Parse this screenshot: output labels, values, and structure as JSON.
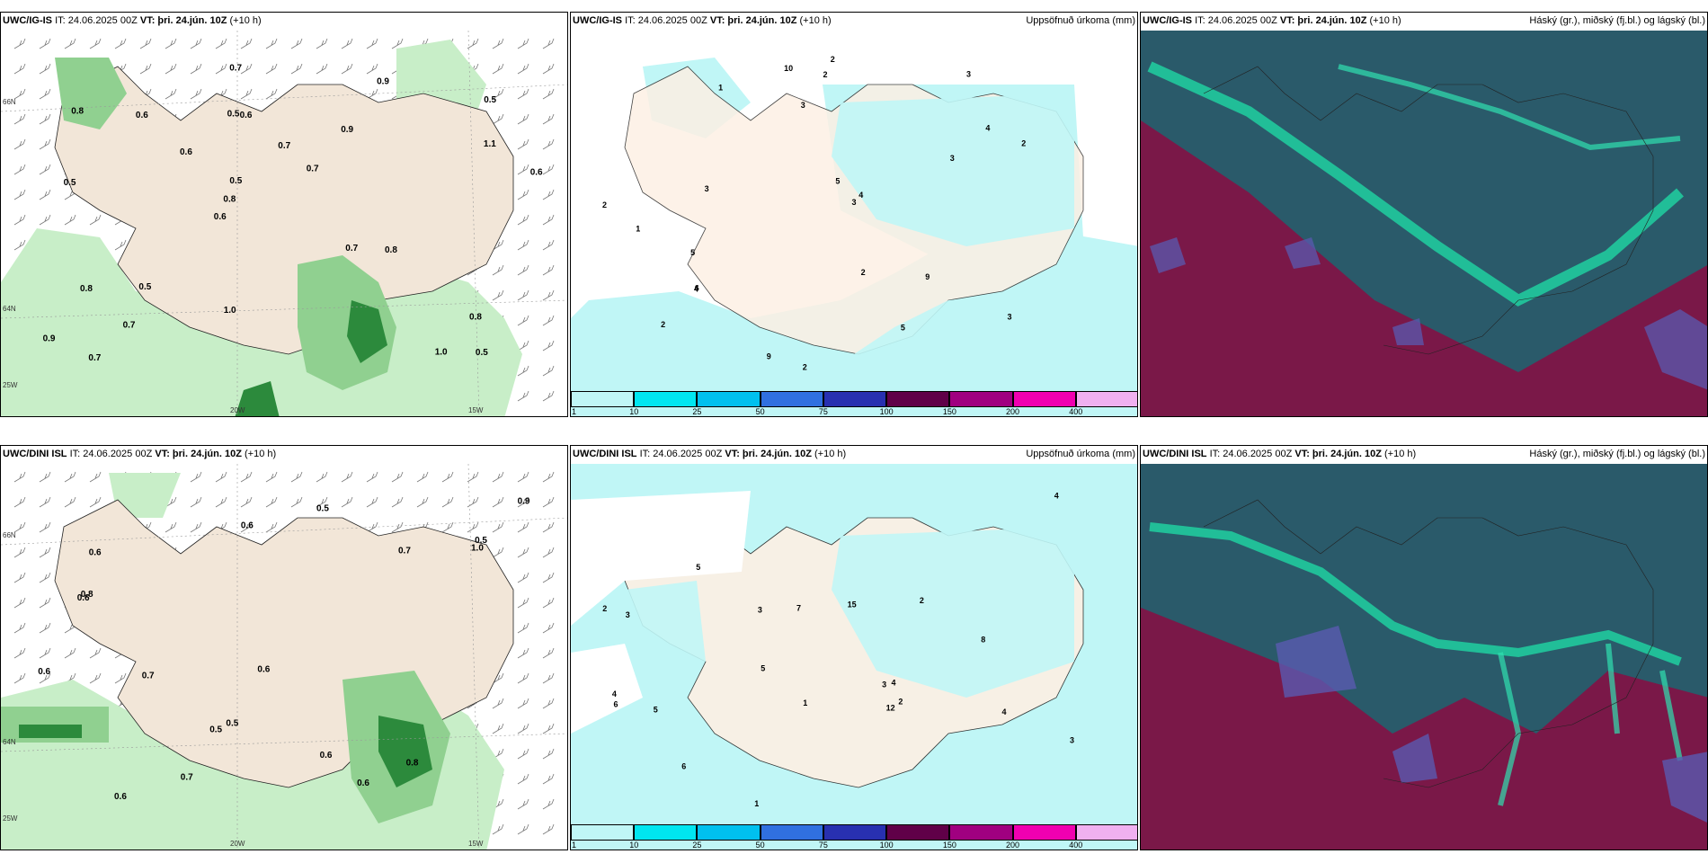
{
  "panels": {
    "r1c1": {
      "model": "UWC/IG-IS",
      "it": "IT: 24.06.2025 00Z",
      "vt": "VT: þri. 24.jún. 10Z",
      "lead": "(+10 h)",
      "right": ""
    },
    "r1c2": {
      "model": "UWC/IG-IS",
      "it": "IT: 24.06.2025 00Z",
      "vt": "VT: þri. 24.jún. 10Z",
      "lead": "(+10 h)",
      "right": "Uppsöfnuð úrkoma (mm)"
    },
    "r1c3": {
      "model": "UWC/IG-IS",
      "it": "IT: 24.06.2025 00Z",
      "vt": "VT: þri. 24.jún. 10Z",
      "lead": "(+10 h)",
      "right": "Háský (gr.), miðský (fj.bl.) og lágský (bl.)"
    },
    "r2c1": {
      "model": "UWC/DINI ISL",
      "it": "IT: 24.06.2025 00Z",
      "vt": "VT: þri. 24.jún. 10Z",
      "lead": "(+10 h)",
      "right": ""
    },
    "r2c2": {
      "model": "UWC/DINI ISL",
      "it": "IT: 24.06.2025 00Z",
      "vt": "VT: þri. 24.jún. 10Z",
      "lead": "(+10 h)",
      "right": "Uppsöfnuð úrkoma (mm)"
    },
    "r2c3": {
      "model": "UWC/DINI ISL",
      "it": "IT: 24.06.2025 00Z",
      "vt": "VT: þri. 24.jún. 10Z",
      "lead": "(+10 h)",
      "right": "Háský (gr.), miðský (fj.bl.) og lágský (bl.)"
    }
  },
  "grid_labels": {
    "lat66": "66N",
    "lat64": "64N",
    "lon25": "25W",
    "lon20": "20W",
    "lon15": "15W"
  },
  "colorbar": {
    "ticks": [
      "1",
      "10",
      "25",
      "50",
      "75",
      "100",
      "150",
      "200",
      "400"
    ],
    "colors": [
      "#c0f6f6",
      "#00e6f0",
      "#00c0ee",
      "#3070e0",
      "#2830b0",
      "#600048",
      "#a00080",
      "#f000b0",
      "#f0b0f0"
    ]
  },
  "precip_values_r1": [
    "0.5",
    "0.5",
    "0.5",
    "0.6",
    "0.9",
    "0.7",
    "0.5",
    "0.7",
    "0.8",
    "0.6",
    "0.9",
    "0.7",
    "0.6",
    "0.7",
    "0.8",
    "0.8",
    "0.7",
    "0.6",
    "0.7",
    "1.1",
    "0.8",
    "1.0",
    "0.5",
    "0.6",
    "0.9",
    "0.5",
    "1.0",
    "0.8"
  ],
  "precip_values_r2": [
    "0.5",
    "0.5",
    "0.5",
    "0.6",
    "0.6",
    "0.7",
    "0.9",
    "0.5",
    "0.6",
    "0.6",
    "0.6",
    "0.7",
    "1.0",
    "0.6",
    "0.8",
    "0.6",
    "0.7",
    "0.6",
    "0.8"
  ],
  "accum_values_r1": [
    "2",
    "3",
    "1",
    "4",
    "2",
    "3",
    "5",
    "6",
    "2",
    "3",
    "1",
    "2",
    "9",
    "3",
    "2",
    "10",
    "3",
    "2",
    "4",
    "9",
    "5",
    "2",
    "3",
    "4",
    "5"
  ],
  "accum_values_r2": [
    "2",
    "3",
    "4",
    "12",
    "5",
    "7",
    "8",
    "4",
    "3",
    "15",
    "6",
    "2",
    "5",
    "1",
    "4",
    "3",
    "2",
    "6",
    "1",
    "5",
    "4",
    "3"
  ],
  "colors": {
    "land": "#f2e6d8",
    "precip_light": "#c8eec8",
    "precip_mid": "#90d090",
    "precip_dark": "#2c8a3c",
    "accum_fill": "#c0f6f6",
    "cloud_high": "#7a1848",
    "cloud_mid": "#2a5a6a",
    "cloud_low": "#20d0a0"
  }
}
